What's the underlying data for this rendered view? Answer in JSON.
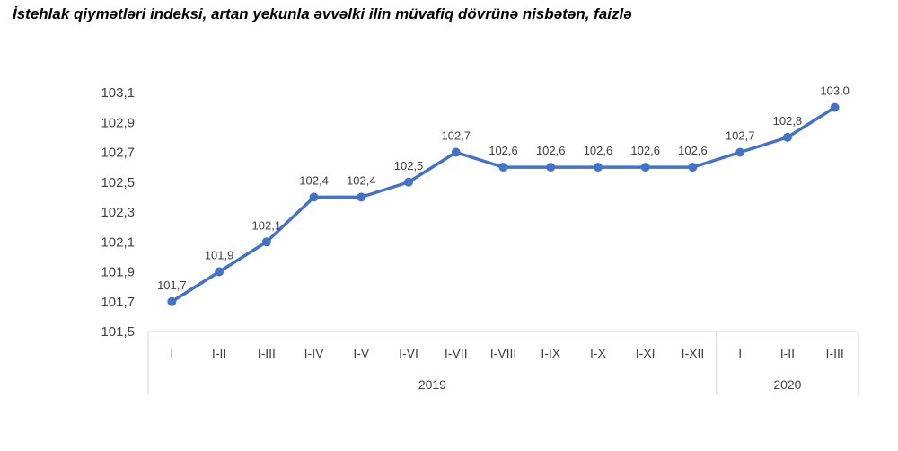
{
  "chart_data": {
    "type": "line",
    "title": "İstehlak qiymətləri indeksi, artan yekunla əvvəlki ilin müvafiq dövrünə nisbətən, faizlə",
    "categories": [
      "I",
      "I-II",
      "I-III",
      "I-IV",
      "I-V",
      "I-VI",
      "I-VII",
      "I-VIII",
      "I-IX",
      "I-X",
      "I-XI",
      "I-XII",
      "I",
      "I-II",
      "I-III"
    ],
    "groups": [
      {
        "label": "2019",
        "count": 12
      },
      {
        "label": "2020",
        "count": 3
      }
    ],
    "values": [
      101.7,
      101.9,
      102.1,
      102.4,
      102.4,
      102.5,
      102.7,
      102.6,
      102.6,
      102.6,
      102.6,
      102.6,
      102.7,
      102.8,
      103.0
    ],
    "data_labels": [
      "101,7",
      "101,9",
      "102,1",
      "102,4",
      "102,4",
      "102,5",
      "102,7",
      "102,6",
      "102,6",
      "102,6",
      "102,6",
      "102,6",
      "102,7",
      "102,8",
      "103,0"
    ],
    "yticks": [
      "101,5",
      "101,7",
      "101,9",
      "102,1",
      "102,3",
      "102,5",
      "102,7",
      "102,9",
      "103,1"
    ],
    "ylim": [
      101.5,
      103.1
    ],
    "grid": false,
    "legend": "none",
    "color": "#4472C4"
  }
}
